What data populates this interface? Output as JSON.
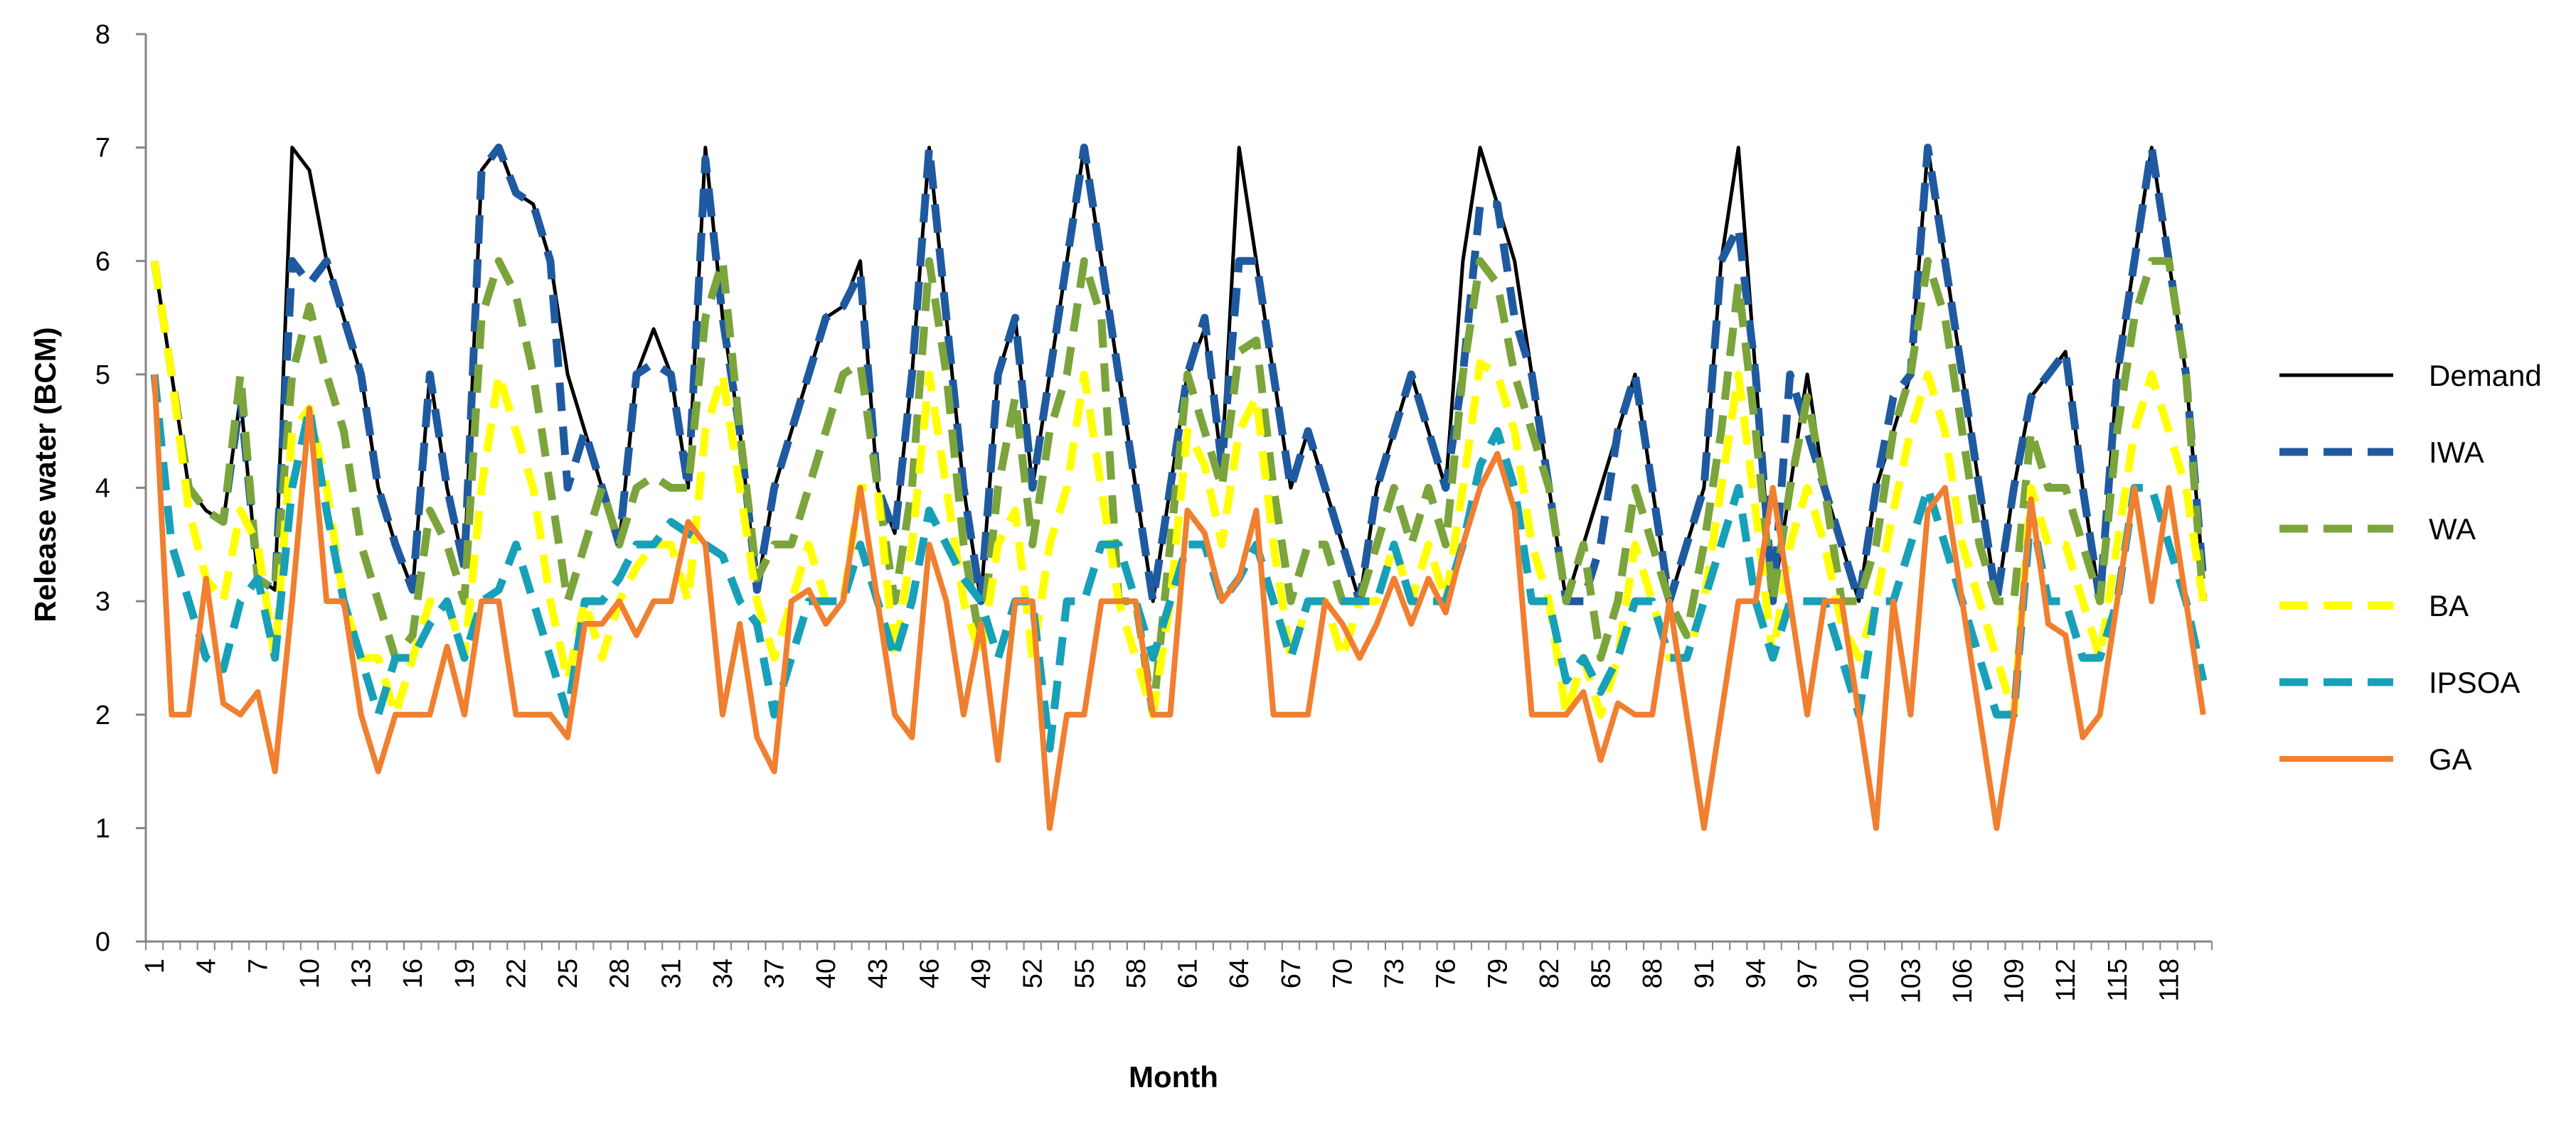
{
  "chart_data": {
    "type": "line",
    "title": "",
    "xlabel": "Month",
    "ylabel": "Release water (BCM)",
    "ylim": [
      0,
      8
    ],
    "yticks": [
      0,
      1,
      2,
      3,
      4,
      5,
      6,
      7,
      8
    ],
    "xlim": [
      1,
      120
    ],
    "xtick_labels": [
      "1",
      "4",
      "7",
      "10",
      "13",
      "16",
      "19",
      "22",
      "25",
      "28",
      "31",
      "34",
      "37",
      "40",
      "43",
      "46",
      "49",
      "52",
      "55",
      "58",
      "61",
      "64",
      "67",
      "70",
      "73",
      "76",
      "79",
      "82",
      "85",
      "88",
      "91",
      "94",
      "97",
      "100",
      "103",
      "106",
      "109",
      "112",
      "115",
      "118"
    ],
    "grid": false,
    "legend_position": "right",
    "series": [
      {
        "name": "Demand",
        "color": "#000000",
        "dash": "solid",
        "values": [
          6,
          5,
          4,
          3.8,
          3.7,
          4.8,
          3.2,
          3.1,
          7,
          6.8,
          6,
          5.5,
          5,
          4,
          3.5,
          3.1,
          5,
          4,
          3.3,
          6.8,
          7,
          6.6,
          6.5,
          6,
          5,
          4.5,
          4,
          3.5,
          5,
          5.4,
          5,
          4,
          7,
          5.5,
          4.5,
          3.1,
          4,
          4.5,
          5,
          5.5,
          5.6,
          6,
          4,
          3.6,
          5,
          7,
          5.5,
          4,
          3,
          5,
          5.5,
          4,
          5,
          6,
          7,
          6,
          5,
          4,
          3,
          4,
          5,
          5.4,
          4.2,
          7,
          6,
          5,
          4,
          4.5,
          4,
          3.5,
          3,
          4,
          4.5,
          5,
          4.5,
          4,
          6,
          7,
          6.5,
          6,
          5,
          4,
          3,
          3.5,
          4,
          4.5,
          5,
          4,
          3,
          3.5,
          4,
          6,
          7,
          5,
          3,
          4,
          5,
          4,
          3.5,
          3,
          4,
          4.5,
          5,
          7,
          6,
          5,
          4,
          3,
          4,
          4.8,
          5,
          5.2,
          4,
          3,
          5,
          6,
          7,
          6,
          5,
          3.2
        ]
      },
      {
        "name": "IWA",
        "color": "#1f5aa0",
        "dash": "dashed",
        "values": [
          6,
          5,
          4,
          3.8,
          3.7,
          4.8,
          3.2,
          3.1,
          6,
          5.8,
          6,
          5.5,
          5,
          4,
          3.5,
          3.1,
          5,
          4,
          3.3,
          6.8,
          7,
          6.6,
          6.5,
          6,
          4,
          4.5,
          4,
          3.5,
          5,
          5.1,
          5,
          4,
          6.9,
          5.5,
          4.5,
          3.1,
          4,
          4.5,
          5,
          5.5,
          5.6,
          5.9,
          4,
          3.6,
          5,
          7,
          5.5,
          4,
          3,
          5,
          5.5,
          4,
          5,
          6,
          7,
          6,
          5,
          4,
          3,
          4,
          5,
          5.5,
          4.2,
          6,
          6,
          5,
          4,
          4.5,
          4,
          3.5,
          3,
          4,
          4.5,
          5,
          4.5,
          4,
          5,
          6.5,
          6.5,
          5.5,
          5,
          4,
          3,
          3,
          3.5,
          4.5,
          5,
          4,
          3,
          3.5,
          4,
          6,
          6.3,
          5,
          3,
          5,
          4.5,
          4,
          3.5,
          3,
          4,
          4.8,
          5,
          7,
          6,
          5,
          4,
          3,
          4,
          4.8,
          5,
          5.2,
          4,
          3,
          5,
          6,
          7,
          6,
          5,
          3.2
        ]
      },
      {
        "name": "WA",
        "color": "#7ba43c",
        "dash": "dashed",
        "values": [
          6,
          5,
          4,
          3.8,
          3.7,
          5,
          3.2,
          3.1,
          5,
          5.6,
          5,
          4.5,
          3.5,
          3,
          2.5,
          2.7,
          3.8,
          3.5,
          3,
          5.5,
          6,
          5.7,
          5,
          4,
          3,
          3.5,
          4,
          3.5,
          4,
          4.1,
          4,
          4,
          5.5,
          6,
          4.5,
          3.2,
          3.5,
          3.5,
          4,
          4.5,
          5,
          5.1,
          4,
          3,
          4,
          6,
          5,
          3.5,
          2.6,
          4,
          4.8,
          3.5,
          4.5,
          5,
          6,
          5.5,
          3,
          3,
          2,
          3.5,
          5,
          4.5,
          4,
          5.2,
          5.3,
          4,
          3,
          3.5,
          3.5,
          3,
          3,
          3.5,
          4,
          3.5,
          4,
          3.5,
          5,
          6,
          5.8,
          5,
          4.5,
          4,
          3,
          3.5,
          2.5,
          3,
          4,
          3.5,
          3,
          2.7,
          3.5,
          4.5,
          5.8,
          4.5,
          3,
          4,
          4.8,
          4,
          3,
          3,
          3.5,
          4.5,
          5,
          6,
          5.5,
          4.5,
          3.5,
          3,
          3,
          4.5,
          4,
          4,
          3.5,
          3,
          4.5,
          5.5,
          6,
          6,
          5,
          3
        ]
      },
      {
        "name": "BA",
        "color": "#ffff00",
        "dash": "dashed",
        "values": [
          6,
          5,
          3.8,
          3.2,
          3,
          3.8,
          3.5,
          2.5,
          4.5,
          4.7,
          4,
          3,
          2.5,
          2.5,
          2,
          2.5,
          3,
          3,
          2.5,
          4,
          5,
          4.5,
          4,
          3,
          2.3,
          3,
          2.5,
          3,
          3.3,
          3.5,
          3.5,
          3,
          4.5,
          5,
          4,
          3,
          2.5,
          3,
          3.5,
          3,
          3,
          4,
          4,
          2.5,
          3.5,
          5,
          4,
          3,
          2.5,
          3.5,
          3.8,
          2.5,
          3.5,
          4,
          5,
          4,
          3,
          2.5,
          2,
          3,
          4.5,
          4.2,
          3.5,
          4.5,
          4.8,
          3.5,
          2.5,
          3,
          3,
          2.5,
          3,
          3,
          3.5,
          3,
          3.5,
          3,
          4,
          5.1,
          5,
          4.5,
          3.5,
          3,
          2,
          2.5,
          2,
          2.5,
          3.5,
          3,
          2.5,
          2.5,
          3,
          4,
          5,
          3.8,
          2.5,
          3.5,
          4,
          3.5,
          2.8,
          2.5,
          3,
          3.8,
          4.5,
          5,
          4.5,
          3.5,
          3,
          2.5,
          2,
          4,
          3.5,
          3.5,
          3,
          2.5,
          3.5,
          4.5,
          5,
          4.5,
          4,
          3
        ]
      },
      {
        "name": "IPSOA",
        "color": "#17a0b8",
        "dash": "dashed",
        "values": [
          5,
          3.5,
          3,
          2.5,
          2.4,
          3,
          3.2,
          2.5,
          4,
          4.7,
          3.8,
          3,
          2.5,
          2,
          2.5,
          2.5,
          2.8,
          3,
          2.5,
          3,
          3.1,
          3.5,
          3,
          2.5,
          2,
          3,
          3,
          3.2,
          3.5,
          3.5,
          3.7,
          3.6,
          3.5,
          3.4,
          3,
          2.8,
          2,
          2.5,
          3,
          3,
          3,
          3.5,
          3,
          2.5,
          3,
          3.8,
          3.5,
          3.2,
          3,
          2.5,
          3,
          3,
          1.7,
          3,
          3,
          3.5,
          3.5,
          3,
          2.5,
          3,
          3.5,
          3.5,
          3,
          3.2,
          3.5,
          3,
          2.5,
          3,
          3,
          3,
          3,
          3,
          3.5,
          3,
          3,
          3,
          3.5,
          4.2,
          4.5,
          4,
          3,
          3,
          2.3,
          2.5,
          2.2,
          2.5,
          3,
          3,
          2.5,
          2.5,
          3,
          3.5,
          4,
          3,
          2.5,
          3,
          3,
          3,
          2.5,
          2,
          3,
          3,
          3.5,
          4,
          3.5,
          3,
          2.5,
          2,
          2,
          3.8,
          3,
          3,
          2.5,
          2.5,
          3,
          4,
          4,
          3.5,
          3,
          2.3
        ]
      },
      {
        "name": "GA",
        "color": "#f07f30",
        "dash": "solid",
        "values": [
          5,
          2,
          2,
          3.2,
          2.1,
          2,
          2.2,
          1.5,
          3,
          4.7,
          3,
          3,
          2,
          1.5,
          2,
          2,
          2,
          2.6,
          2,
          3,
          3,
          2,
          2,
          2,
          1.8,
          2.8,
          2.8,
          3,
          2.7,
          3,
          3,
          3.7,
          3.5,
          2,
          2.8,
          1.8,
          1.5,
          3,
          3.1,
          2.8,
          3,
          4,
          3,
          2,
          1.8,
          3.5,
          3,
          2,
          2.8,
          1.6,
          3,
          3,
          1,
          2,
          2,
          3,
          3,
          3,
          2,
          2,
          3.8,
          3.6,
          3,
          3.2,
          3.8,
          2,
          2,
          2,
          3,
          2.8,
          2.5,
          2.8,
          3.2,
          2.8,
          3.2,
          2.9,
          3.5,
          4,
          4.3,
          3.8,
          2,
          2,
          2,
          2.2,
          1.6,
          2.1,
          2,
          2,
          3,
          2,
          1,
          2,
          3,
          3,
          4,
          3,
          2,
          3,
          3,
          2,
          1,
          3,
          2,
          3.8,
          4,
          3,
          2,
          1,
          2,
          3.9,
          2.8,
          2.7,
          1.8,
          2,
          3,
          4,
          3,
          4,
          3,
          2
        ]
      }
    ]
  }
}
